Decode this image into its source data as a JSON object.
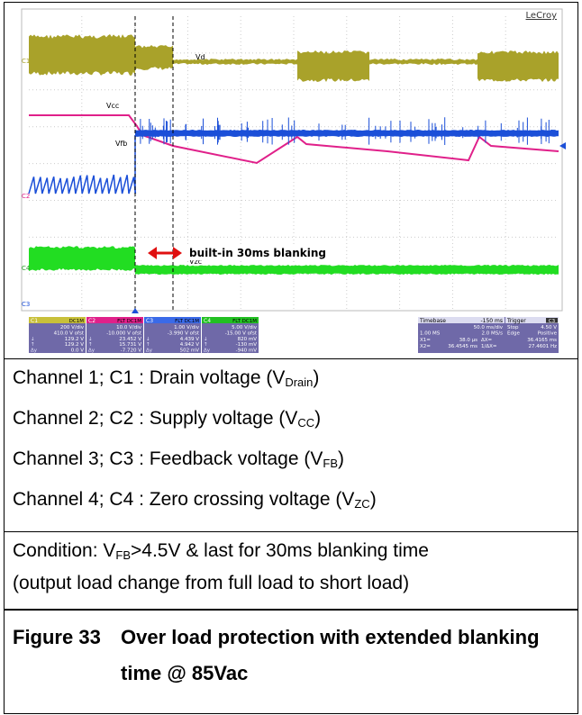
{
  "scope": {
    "brand": "LeCroy",
    "trace_labels": {
      "vd": "Vd",
      "vcc": "Vcc",
      "vfb": "Vfb",
      "vzc": "Vzc"
    },
    "channel_tags": [
      "C1",
      "C2",
      "C3",
      "C4"
    ],
    "annotation": "built-in 30ms blanking",
    "channels": [
      {
        "name": "C1",
        "badge": "DC1M",
        "rows": [
          [
            "",
            "200 V/div"
          ],
          [
            "",
            "410.0 V ofst"
          ],
          [
            "↓",
            "129.2 V"
          ],
          [
            "↑",
            "129.2 V"
          ],
          [
            "Δy",
            "0.0 V"
          ]
        ]
      },
      {
        "name": "C2",
        "badge": "FLT DC1M",
        "rows": [
          [
            "",
            "10.0 V/div"
          ],
          [
            "",
            "-10.000 V ofst"
          ],
          [
            "↓",
            "23.452 V"
          ],
          [
            "↑",
            "15.731 V"
          ],
          [
            "Δy",
            "-7.720 V"
          ]
        ]
      },
      {
        "name": "C3",
        "badge": "FLT DC1M",
        "rows": [
          [
            "",
            "1.00 V/div"
          ],
          [
            "",
            "-3.990 V ofst"
          ],
          [
            "↓",
            "4.439 V"
          ],
          [
            "↑",
            "4.942 V"
          ],
          [
            "Δy",
            "502 mV"
          ]
        ]
      },
      {
        "name": "C4",
        "badge": "FLT DC1M",
        "rows": [
          [
            "",
            "5.00 V/div"
          ],
          [
            "",
            "-15.00 V ofst"
          ],
          [
            "↓",
            "820 mV"
          ],
          [
            "↑",
            "-130 mV"
          ],
          [
            "Δy",
            "-940 mV"
          ]
        ]
      }
    ],
    "timebase": {
      "name": "Timebase",
      "offset": "-150 ms",
      "rows": [
        [
          "",
          "50.0 ms/div"
        ],
        [
          "1.00 MS",
          "2.0 MS/s"
        ]
      ]
    },
    "trigger": {
      "name": "Trigger",
      "badge": "C3",
      "rows": [
        [
          "Stop",
          "4.50 V"
        ],
        [
          "Edge",
          "Positive"
        ]
      ]
    },
    "cursors": [
      [
        "X1=",
        "38.0 µs",
        "ΔX=",
        "36.4165 ms"
      ],
      [
        "X2=",
        "36.4545 ms",
        "1/ΔX=",
        "27.4601 Hz"
      ]
    ]
  },
  "channels_list": [
    {
      "prefix": "Channel 1; C1 : Drain voltage (V",
      "sub": "Drain",
      "suffix": ")"
    },
    {
      "prefix": "Channel 2; C2 : Supply voltage (V",
      "sub": "CC",
      "suffix": ")"
    },
    {
      "prefix": "Channel 3; C3 : Feedback voltage (V",
      "sub": "FB",
      "suffix": ")"
    },
    {
      "prefix": "Channel 4; C4 : Zero crossing voltage (V",
      "sub": "ZC",
      "suffix": ")"
    }
  ],
  "condition": {
    "prefix": "Condition: V",
    "sub": "FB",
    "suffix": ">4.5V & last for 30ms blanking time",
    "line2": "(output load change from full load to short load)"
  },
  "caption": {
    "label": "Figure 33",
    "title": "Over load protection with extended blanking time  @ 85Vac"
  }
}
